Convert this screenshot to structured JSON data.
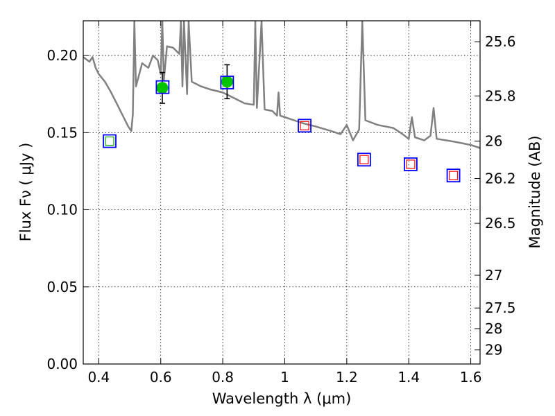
{
  "chart_data": {
    "type": "scatter",
    "xlabel": "Wavelength  λ (μm)",
    "ylabel": "Flux  Fν  ( μJy )",
    "ylabel_right": "Magnitude (AB)",
    "xlim": [
      0.35,
      1.63
    ],
    "ylim": [
      0.0,
      0.2225
    ],
    "grid": true,
    "x_ticks": [
      {
        "value": 0.4,
        "label": "0.4"
      },
      {
        "value": 0.6,
        "label": "0.6"
      },
      {
        "value": 0.8,
        "label": "0.8"
      },
      {
        "value": 1.0,
        "label": "1"
      },
      {
        "value": 1.2,
        "label": "1.2"
      },
      {
        "value": 1.4,
        "label": "1.4"
      },
      {
        "value": 1.6,
        "label": "1.6"
      }
    ],
    "y_ticks": [
      {
        "value": 0.0,
        "label": "0.00"
      },
      {
        "value": 0.05,
        "label": "0.05"
      },
      {
        "value": 0.1,
        "label": "0.10"
      },
      {
        "value": 0.15,
        "label": "0.15"
      },
      {
        "value": 0.2,
        "label": "0.20"
      }
    ],
    "mag_ticks": [
      {
        "value": 25.6,
        "label": "25.6"
      },
      {
        "value": 25.8,
        "label": "25.8"
      },
      {
        "value": 26.0,
        "label": "26"
      },
      {
        "value": 26.2,
        "label": "26.2"
      },
      {
        "value": 26.5,
        "label": "26.5"
      },
      {
        "value": 27.0,
        "label": "27"
      },
      {
        "value": 27.5,
        "label": "27.5"
      },
      {
        "value": 28.0,
        "label": "28"
      },
      {
        "value": 29.0,
        "label": "29"
      }
    ],
    "template_sed": {
      "color": "#808080",
      "points": [
        [
          0.35,
          0.199
        ],
        [
          0.37,
          0.196
        ],
        [
          0.38,
          0.199
        ],
        [
          0.39,
          0.192
        ],
        [
          0.4,
          0.188
        ],
        [
          0.42,
          0.183
        ],
        [
          0.44,
          0.176
        ],
        [
          0.46,
          0.168
        ],
        [
          0.48,
          0.16
        ],
        [
          0.495,
          0.154
        ],
        [
          0.505,
          0.151
        ],
        [
          0.51,
          0.162
        ],
        [
          0.515,
          0.222
        ],
        [
          0.52,
          0.18
        ],
        [
          0.54,
          0.195
        ],
        [
          0.56,
          0.192
        ],
        [
          0.575,
          0.2
        ],
        [
          0.59,
          0.197
        ],
        [
          0.6,
          0.188
        ],
        [
          0.605,
          0.222
        ],
        [
          0.61,
          0.184
        ],
        [
          0.62,
          0.206
        ],
        [
          0.64,
          0.205
        ],
        [
          0.66,
          0.201
        ],
        [
          0.665,
          0.222
        ],
        [
          0.67,
          0.18
        ],
        [
          0.675,
          0.222
        ],
        [
          0.685,
          0.175
        ],
        [
          0.69,
          0.222
        ],
        [
          0.7,
          0.183
        ],
        [
          0.73,
          0.18
        ],
        [
          0.76,
          0.178
        ],
        [
          0.8,
          0.176
        ],
        [
          0.84,
          0.172
        ],
        [
          0.87,
          0.169
        ],
        [
          0.9,
          0.168
        ],
        [
          0.905,
          0.222
        ],
        [
          0.91,
          0.166
        ],
        [
          0.925,
          0.222
        ],
        [
          0.935,
          0.165
        ],
        [
          0.96,
          0.164
        ],
        [
          0.975,
          0.161
        ],
        [
          0.98,
          0.176
        ],
        [
          0.985,
          0.161
        ],
        [
          1.0,
          0.16
        ],
        [
          1.03,
          0.158
        ],
        [
          1.06,
          0.156
        ],
        [
          1.1,
          0.154
        ],
        [
          1.15,
          0.151
        ],
        [
          1.18,
          0.149
        ],
        [
          1.2,
          0.155
        ],
        [
          1.22,
          0.145
        ],
        [
          1.24,
          0.152
        ],
        [
          1.25,
          0.222
        ],
        [
          1.26,
          0.158
        ],
        [
          1.3,
          0.155
        ],
        [
          1.35,
          0.153
        ],
        [
          1.38,
          0.149
        ],
        [
          1.4,
          0.146
        ],
        [
          1.41,
          0.16
        ],
        [
          1.42,
          0.147
        ],
        [
          1.45,
          0.145
        ],
        [
          1.47,
          0.148
        ],
        [
          1.48,
          0.166
        ],
        [
          1.49,
          0.146
        ],
        [
          1.52,
          0.145
        ],
        [
          1.55,
          0.144
        ],
        [
          1.6,
          0.142
        ],
        [
          1.63,
          0.14
        ]
      ]
    },
    "series": [
      {
        "name": "detections",
        "marker": "circle",
        "color": "#00c400",
        "points": [
          {
            "x": 0.605,
            "y": 0.179,
            "yerr": 0.01
          },
          {
            "x": 0.814,
            "y": 0.183,
            "yerr": 0.011
          }
        ]
      },
      {
        "name": "blue_boxes",
        "marker": "square-open",
        "color": "#0000ff",
        "points": [
          {
            "x": 0.435,
            "y": 0.1445
          },
          {
            "x": 0.606,
            "y": 0.1795
          },
          {
            "x": 0.814,
            "y": 0.1825
          },
          {
            "x": 1.064,
            "y": 0.1545
          },
          {
            "x": 1.256,
            "y": 0.1325
          },
          {
            "x": 1.406,
            "y": 0.1295
          },
          {
            "x": 1.544,
            "y": 0.1222
          }
        ]
      },
      {
        "name": "green_inner",
        "marker": "square-open-small",
        "color": "#00aa00",
        "points": [
          {
            "x": 0.435,
            "y": 0.1445
          }
        ]
      },
      {
        "name": "red_inner",
        "marker": "square-open-small",
        "color": "#ff0000",
        "points": [
          {
            "x": 1.064,
            "y": 0.1545
          },
          {
            "x": 1.256,
            "y": 0.1325
          },
          {
            "x": 1.406,
            "y": 0.1295
          },
          {
            "x": 1.544,
            "y": 0.1222
          }
        ]
      }
    ]
  }
}
